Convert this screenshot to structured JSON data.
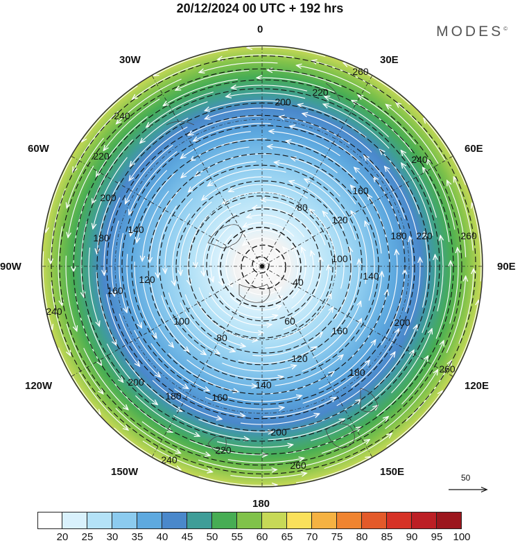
{
  "header": {
    "title": "20/12/2024  00 UTC  + 192 hrs",
    "brand": "MODES",
    "brand_mark": "©"
  },
  "map": {
    "projection": "north-polar-stereographic",
    "longitude_labels": [
      "0",
      "30E",
      "60E",
      "90E",
      "120E",
      "150E",
      "180",
      "150W",
      "120W",
      "90W",
      "60W",
      "30W"
    ],
    "contour_labels": [
      "40",
      "60",
      "80",
      "80",
      "100",
      "100",
      "120",
      "120",
      "120",
      "140",
      "140",
      "140",
      "160",
      "160",
      "160",
      "160",
      "180",
      "180",
      "180",
      "180",
      "200",
      "200",
      "200",
      "200",
      "200",
      "220",
      "220",
      "220",
      "220",
      "240",
      "240",
      "240",
      "240",
      "260",
      "260",
      "260",
      "260"
    ],
    "wind_scale_value": "50"
  },
  "legend": {
    "ticks": [
      "20",
      "25",
      "30",
      "35",
      "40",
      "45",
      "50",
      "55",
      "60",
      "65",
      "70",
      "75",
      "80",
      "85",
      "90",
      "95",
      "100"
    ],
    "colors": [
      "#ffffff",
      "#d9f1fc",
      "#b4e2f7",
      "#8ccbef",
      "#5ea9df",
      "#4a88cb",
      "#3f9d98",
      "#47ad54",
      "#80c24a",
      "#c7d957",
      "#f9e05b",
      "#f5b242",
      "#f08430",
      "#e35a2a",
      "#d63226",
      "#bc1f25",
      "#9c161d"
    ]
  }
}
